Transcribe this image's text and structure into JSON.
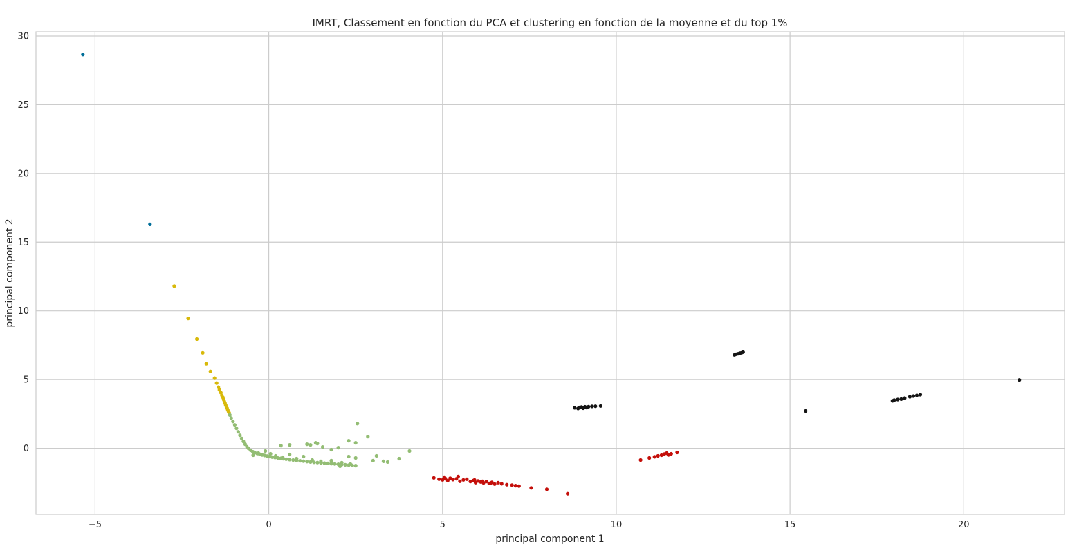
{
  "chart_data": {
    "type": "scatter",
    "title": "IMRT, Classement en fonction du PCA et clustering en fonction de la moyenne et du top 1%",
    "xlabel": "principal component 1",
    "ylabel": "principal component 2",
    "xlim": [
      -6.7,
      22.9
    ],
    "ylim": [
      -4.8,
      30.3
    ],
    "x_ticks": [
      -5,
      0,
      5,
      10,
      15,
      20
    ],
    "x_tick_labels": [
      "−5",
      "0",
      "5",
      "10",
      "15",
      "20"
    ],
    "y_ticks": [
      0,
      5,
      10,
      15,
      20,
      25,
      30
    ],
    "y_tick_labels": [
      "0",
      "5",
      "10",
      "15",
      "20",
      "25",
      "30"
    ],
    "grid": true,
    "legend": "none",
    "series": [
      {
        "color": "#006e99",
        "x": [
          -5.35,
          -3.42
        ],
        "y": [
          28.65,
          16.3
        ]
      },
      {
        "color": "#d8b90a",
        "x": [
          -2.72,
          -2.32,
          -2.07,
          -1.9,
          -1.8,
          -1.68,
          -1.56,
          -1.5,
          -1.45,
          -1.42,
          -1.38,
          -1.35,
          -1.32,
          -1.3,
          -1.28,
          -1.26,
          -1.24,
          -1.22,
          -1.2,
          -1.18,
          -1.16,
          -1.14
        ],
        "y": [
          11.8,
          9.45,
          7.95,
          6.95,
          6.15,
          5.6,
          5.1,
          4.75,
          4.45,
          4.25,
          4.05,
          3.85,
          3.7,
          3.55,
          3.4,
          3.28,
          3.15,
          3.03,
          2.92,
          2.8,
          2.68,
          2.58
        ]
      },
      {
        "color": "#93bd74",
        "x": [
          -1.12,
          -1.08,
          -1.03,
          -0.98,
          -0.93,
          -0.88,
          -0.83,
          -0.78,
          -0.73,
          -0.68,
          -0.63,
          -0.58,
          -0.52,
          -0.46,
          -0.4,
          -0.33,
          -0.26,
          -0.19,
          -0.12,
          -0.05,
          0.02,
          0.1,
          0.18,
          0.26,
          0.34,
          0.42,
          0.5,
          0.6,
          0.7,
          0.8,
          0.9,
          1.0,
          1.1,
          1.2,
          1.3,
          1.4,
          1.5,
          1.6,
          1.7,
          1.8,
          1.9,
          2.0,
          2.1,
          2.2,
          2.3,
          2.4,
          2.5,
          -0.45,
          -0.3,
          -0.1,
          0.05,
          0.2,
          0.4,
          0.6,
          0.8,
          1.0,
          1.25,
          1.5,
          1.8,
          2.1,
          2.35,
          0.35,
          0.6,
          1.1,
          1.2,
          1.35,
          1.4,
          1.55,
          1.8,
          2.0,
          2.3,
          2.5,
          2.5,
          2.85,
          3.0,
          3.1,
          3.3,
          3.42,
          3.75,
          4.05,
          2.3,
          2.55,
          2.05
        ],
        "y": [
          2.42,
          2.2,
          1.95,
          1.7,
          1.45,
          1.2,
          0.95,
          0.72,
          0.5,
          0.3,
          0.12,
          -0.02,
          -0.15,
          -0.25,
          -0.32,
          -0.38,
          -0.43,
          -0.48,
          -0.52,
          -0.56,
          -0.6,
          -0.64,
          -0.67,
          -0.7,
          -0.73,
          -0.76,
          -0.79,
          -0.82,
          -0.85,
          -0.88,
          -0.91,
          -0.94,
          -0.97,
          -1.0,
          -1.02,
          -1.04,
          -1.06,
          -1.08,
          -1.1,
          -1.12,
          -1.14,
          -1.16,
          -1.18,
          -1.2,
          -1.22,
          -1.24,
          -1.26,
          -0.5,
          -0.35,
          -0.2,
          -0.4,
          -0.55,
          -0.65,
          -0.45,
          -0.75,
          -0.6,
          -0.85,
          -0.95,
          -0.9,
          -1.05,
          -1.15,
          0.2,
          0.25,
          0.3,
          0.25,
          0.4,
          0.35,
          0.1,
          -0.1,
          0.05,
          -0.6,
          0.4,
          -0.7,
          0.85,
          -0.9,
          -0.55,
          -0.95,
          -1.0,
          -0.75,
          -0.2,
          0.55,
          1.8,
          -1.3
        ]
      },
      {
        "color": "#c40f0a",
        "x": [
          4.75,
          4.9,
          5.0,
          5.08,
          5.15,
          5.22,
          5.3,
          5.4,
          5.5,
          5.6,
          5.7,
          5.8,
          5.88,
          5.95,
          6.02,
          6.1,
          6.18,
          6.26,
          6.34,
          6.42,
          6.5,
          6.6,
          6.7,
          6.85,
          7.0,
          7.1,
          7.2,
          7.55,
          8.0,
          8.6,
          5.05,
          5.45,
          5.92,
          6.15,
          6.38,
          10.7,
          10.95,
          11.1,
          11.2,
          11.3,
          11.38,
          11.45,
          11.5,
          11.58,
          11.75
        ],
        "y": [
          -2.15,
          -2.25,
          -2.3,
          -2.2,
          -2.35,
          -2.18,
          -2.28,
          -2.22,
          -2.4,
          -2.3,
          -2.25,
          -2.42,
          -2.35,
          -2.5,
          -2.38,
          -2.45,
          -2.52,
          -2.42,
          -2.55,
          -2.48,
          -2.6,
          -2.5,
          -2.58,
          -2.65,
          -2.68,
          -2.72,
          -2.75,
          -2.88,
          -2.98,
          -3.3,
          -2.1,
          -2.05,
          -2.3,
          -2.4,
          -2.55,
          -0.85,
          -0.7,
          -0.62,
          -0.55,
          -0.5,
          -0.42,
          -0.35,
          -0.48,
          -0.4,
          -0.3
        ]
      },
      {
        "color": "#141414",
        "x": [
          8.8,
          8.9,
          8.95,
          9.0,
          9.05,
          9.1,
          9.15,
          9.2,
          9.3,
          9.4,
          9.55,
          13.4,
          13.45,
          13.5,
          13.55,
          13.6,
          13.65,
          15.45,
          17.95,
          18.0,
          18.1,
          18.2,
          18.3,
          18.45,
          18.55,
          18.65,
          18.75,
          21.6
        ],
        "y": [
          2.95,
          2.9,
          2.98,
          3.0,
          2.92,
          3.02,
          2.96,
          3.03,
          3.05,
          3.06,
          3.08,
          6.8,
          6.85,
          6.88,
          6.92,
          6.95,
          7.0,
          2.72,
          3.45,
          3.5,
          3.55,
          3.58,
          3.65,
          3.75,
          3.8,
          3.85,
          3.9,
          4.97
        ]
      }
    ]
  }
}
